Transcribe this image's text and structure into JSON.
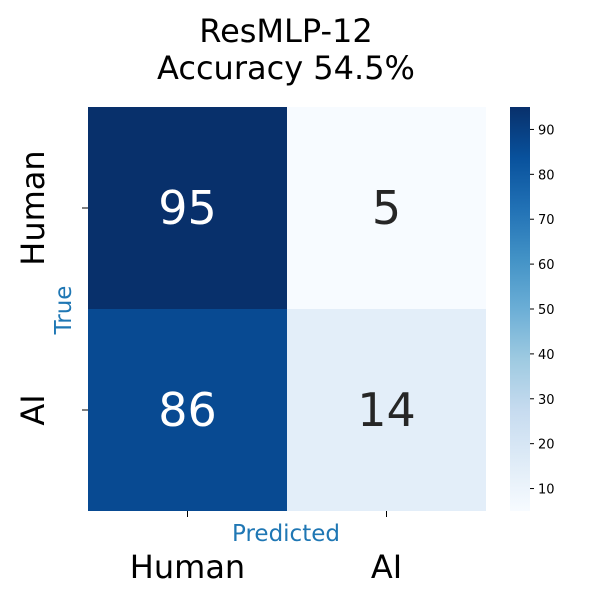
{
  "chart_data": {
    "type": "heatmap",
    "title_lines": [
      "ResMLP-12",
      "Accuracy 54.5%"
    ],
    "xlabel": "Predicted",
    "ylabel": "True",
    "x_categories": [
      "Human",
      "AI"
    ],
    "y_categories": [
      "Human",
      "AI"
    ],
    "values": [
      [
        95,
        5
      ],
      [
        86,
        14
      ]
    ],
    "colormap": "Blues",
    "colorbar": {
      "vmin": 5,
      "vmax": 95,
      "ticks": [
        10,
        20,
        30,
        40,
        50,
        60,
        70,
        80,
        90
      ]
    },
    "grid": false
  },
  "colors": {
    "axis_label": "#1f77b4",
    "text_dark": "#262626",
    "text_light": "#ffffff"
  }
}
